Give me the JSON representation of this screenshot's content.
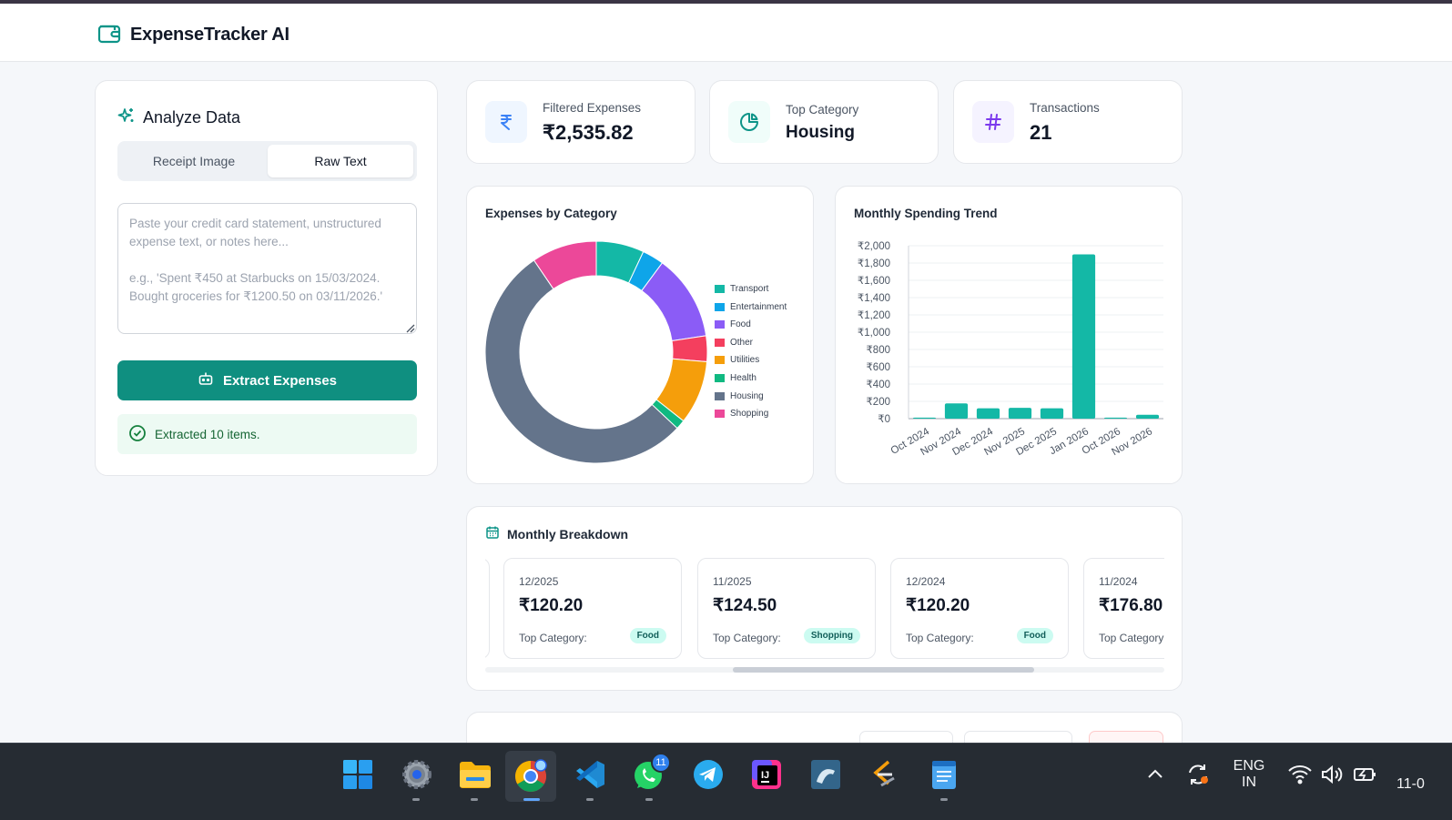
{
  "app": {
    "title": "ExpenseTracker AI"
  },
  "analyze": {
    "title": "Analyze Data",
    "tabs": [
      "Receipt Image",
      "Raw Text"
    ],
    "active_tab": "Raw Text",
    "placeholder": "Paste your credit card statement, unstructured expense text, or notes here...\n\ne.g., 'Spent ₹450 at Starbucks on 15/03/2024. Bought groceries for ₹1200.50 on 03/11/2026.'",
    "extract_label": "Extract Expenses",
    "status": "Extracted 10 items."
  },
  "stats": [
    {
      "label": "Filtered Expenses",
      "value": "₹2,535.82",
      "icon": "rupee-icon",
      "accent": "#3b82f6"
    },
    {
      "label": "Top Category",
      "value": "Housing",
      "icon": "pie-chart-icon",
      "accent": "#0d9488"
    },
    {
      "label": "Transactions",
      "value": "21",
      "icon": "hash-icon",
      "accent": "#7c3aed"
    }
  ],
  "chart_data": [
    {
      "type": "pie",
      "title": "Expenses by Category",
      "categories": [
        "Transport",
        "Entertainment",
        "Food",
        "Other",
        "Utilities",
        "Health",
        "Housing",
        "Shopping"
      ],
      "values": [
        176.8,
        80.0,
        316.9,
        95.0,
        234.8,
        35.0,
        1357.0,
        240.3
      ],
      "colors": [
        "#14b8a6",
        "#0ea5e9",
        "#8b5cf6",
        "#f43f5e",
        "#f59e0b",
        "#10b981",
        "#64748b",
        "#ec4899"
      ],
      "legend": "right"
    },
    {
      "type": "bar",
      "title": "Monthly Spending Trend",
      "categories": [
        "Oct 2024",
        "Nov 2024",
        "Dec 2024",
        "Nov 2025",
        "Dec 2025",
        "Jan 2026",
        "Oct 2026",
        "Nov 2026"
      ],
      "values": [
        12,
        176.8,
        120.2,
        124.5,
        120.2,
        1900,
        12,
        45
      ],
      "ylim": [
        0,
        2000
      ],
      "yticks": [
        "₹0",
        "₹200",
        "₹400",
        "₹600",
        "₹800",
        "₹1,000",
        "₹1,200",
        "₹1,400",
        "₹1,600",
        "₹1,800",
        "₹2,000"
      ],
      "grid": true,
      "color": "#14b8a6"
    }
  ],
  "breakdown": {
    "title": "Monthly Breakdown",
    "top_label": "Top Category:",
    "months": [
      {
        "date": "12/2025",
        "amount": "₹120.20",
        "top": "Food"
      },
      {
        "date": "11/2025",
        "amount": "₹124.50",
        "top": "Shopping"
      },
      {
        "date": "12/2024",
        "amount": "₹120.20",
        "top": "Food"
      },
      {
        "date": "11/2024",
        "amount": "₹176.80",
        "top": ""
      }
    ]
  },
  "taskbar": {
    "apps": [
      "windows-start-icon",
      "settings-icon",
      "file-explorer-icon",
      "chrome-icon",
      "vscode-icon",
      "whatsapp-icon",
      "telegram-icon",
      "intellij-icon",
      "mysql-workbench-icon",
      "sublime-icon",
      "notepad-icon"
    ],
    "whatsapp_badge": "11",
    "language_top": "ENG",
    "language_bottom": "IN",
    "clock": "11-0"
  }
}
